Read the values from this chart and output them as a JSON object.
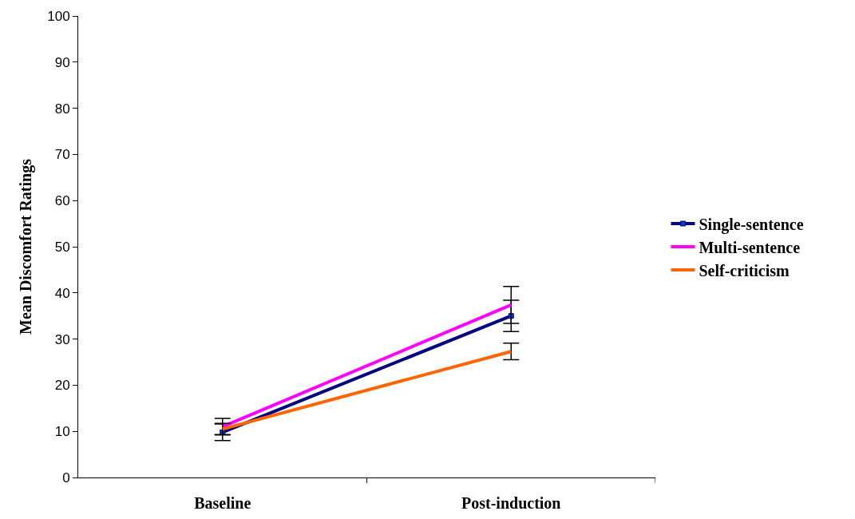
{
  "chart_data": {
    "type": "line",
    "ylabel": "Mean Discomfort Ratings",
    "categories": [
      "Baseline",
      "Post-induction"
    ],
    "series": [
      {
        "name": "Single-sentence",
        "color": "#000080",
        "values": [
          9.8,
          35
        ],
        "errors": [
          1.8,
          3.4
        ],
        "marker": "square"
      },
      {
        "name": "Multi-sentence",
        "color": "#ff00ff",
        "values": [
          11,
          37.4
        ],
        "errors": [
          1.8,
          4
        ]
      },
      {
        "name": "Self-criticism",
        "color": "#ff6600",
        "values": [
          10.5,
          27.3
        ],
        "errors": [
          1.2,
          1.8
        ]
      }
    ],
    "ylim": [
      0,
      100
    ],
    "yticks": [
      0,
      10,
      20,
      30,
      40,
      50,
      60,
      70,
      80,
      90,
      100
    ],
    "grid": false,
    "legend": "right",
    "line_style": "solid"
  }
}
